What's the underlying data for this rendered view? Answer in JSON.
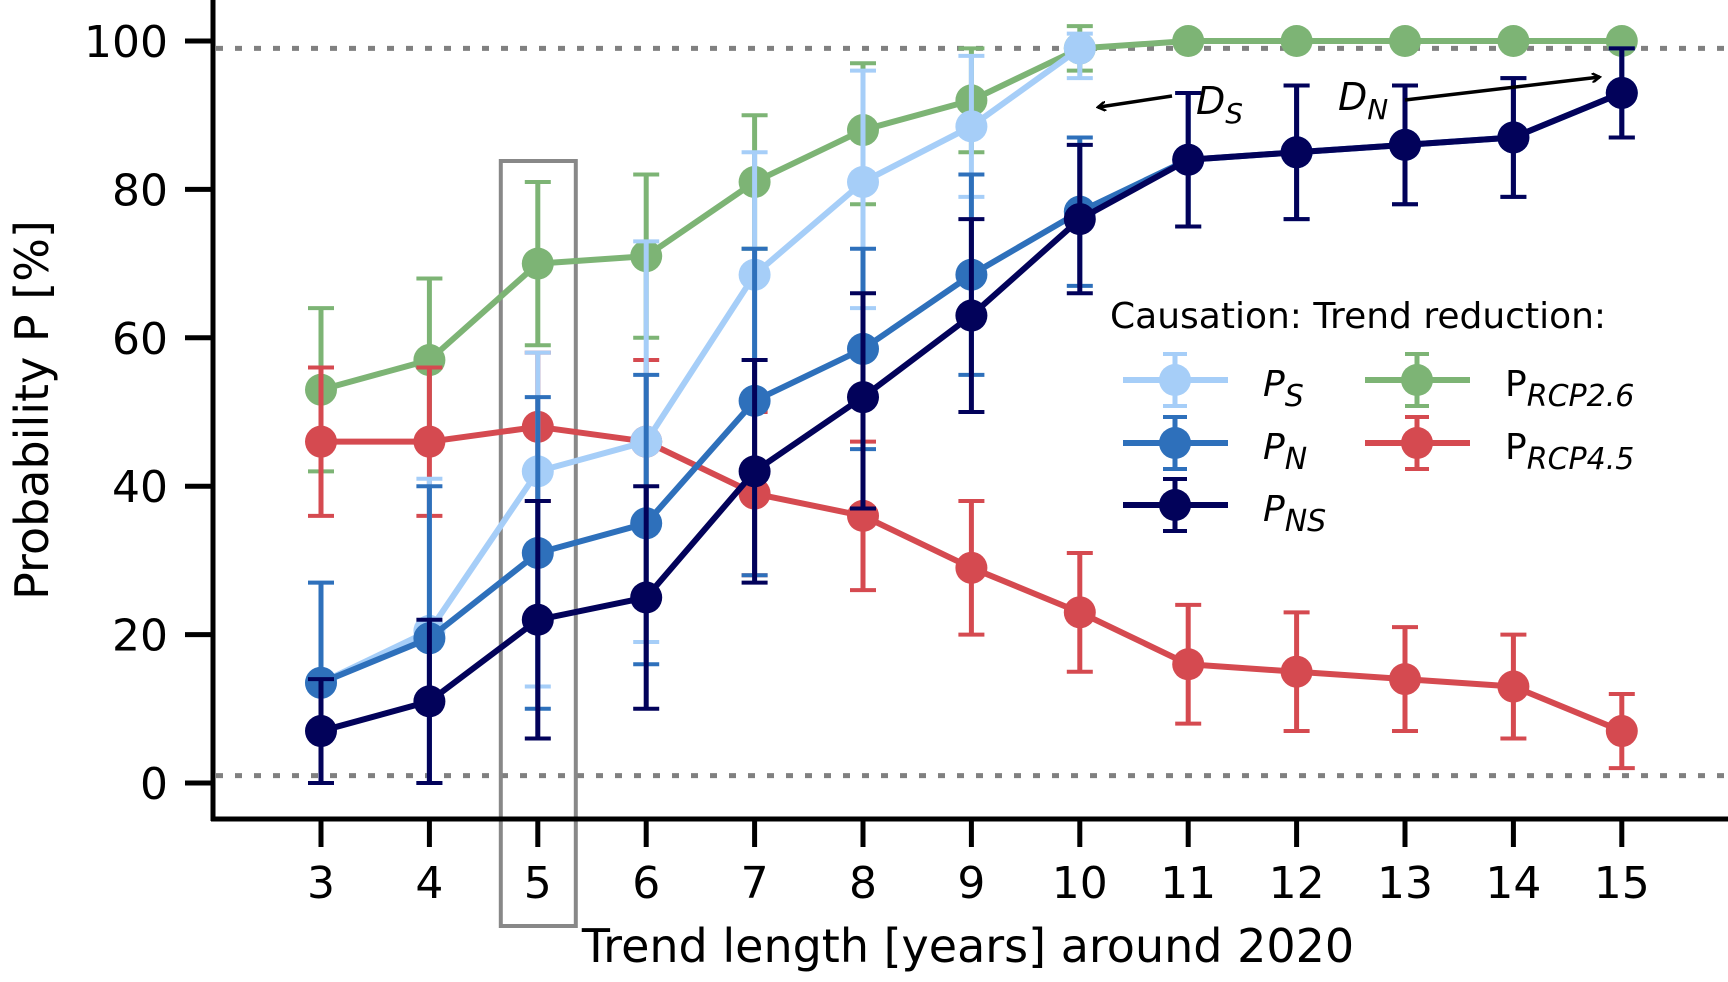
{
  "chart_data": {
    "type": "line",
    "title": "",
    "xlabel": "Trend length [years] around 2020",
    "ylabel": "Probability P [%]",
    "x": [
      3,
      4,
      5,
      6,
      7,
      8,
      9,
      10,
      11,
      12,
      13,
      14,
      15
    ],
    "xlim": [
      2,
      15.95
    ],
    "ylim": [
      -5,
      105
    ],
    "yticks": [
      0,
      20,
      40,
      60,
      80,
      100
    ],
    "xticks": [
      3,
      4,
      5,
      6,
      7,
      8,
      9,
      10,
      11,
      12,
      13,
      14,
      15
    ],
    "grid": false,
    "reference_lines": [
      99,
      1
    ],
    "highlight_x": 5,
    "series": [
      {
        "name": "P_S",
        "label_main": "P",
        "label_sub": "S",
        "group": "Causation",
        "color": "#a6cef8",
        "values": [
          13.5,
          20.5,
          42,
          46,
          68.5,
          81,
          88.5,
          99,
          null,
          null,
          null,
          null,
          null
        ],
        "err_low": [
          0,
          0,
          13,
          19,
          52,
          64,
          79,
          95,
          null,
          null,
          null,
          null,
          null
        ],
        "err_high": [
          27,
          41,
          58,
          73,
          85,
          96,
          98,
          101,
          null,
          null,
          null,
          null,
          null
        ]
      },
      {
        "name": "P_N",
        "label_main": "P",
        "label_sub": "N",
        "group": "Causation",
        "color": "#2e70bb",
        "values": [
          13.5,
          19.5,
          31,
          35,
          51.5,
          58.5,
          68.5,
          77,
          84,
          85,
          86,
          87,
          93
        ],
        "err_low": [
          0,
          0,
          10,
          16,
          28,
          45,
          55,
          67,
          75,
          76,
          78,
          79,
          87
        ],
        "err_high": [
          27,
          40,
          52,
          55,
          72,
          72,
          82,
          87,
          93,
          94,
          94,
          95,
          99
        ]
      },
      {
        "name": "P_NS",
        "label_main": "P",
        "label_sub": "NS",
        "group": "Causation",
        "color": "#02025a",
        "values": [
          7,
          11,
          22,
          25,
          42,
          52,
          63,
          76,
          84,
          85,
          86,
          87,
          93
        ],
        "err_low": [
          0,
          0,
          6,
          10,
          27,
          37,
          50,
          66,
          75,
          76,
          78,
          79,
          87
        ],
        "err_high": [
          14,
          22,
          38,
          40,
          57,
          66,
          76,
          86,
          93,
          94,
          94,
          95,
          99
        ]
      },
      {
        "name": "P_RCP2.6",
        "label_main": "P",
        "label_sub": "RCP2.6",
        "group": "Trend reduction",
        "color": "#7db475",
        "values": [
          53,
          57,
          70,
          71,
          81,
          88,
          92,
          99,
          100,
          100,
          100,
          100,
          100
        ],
        "err_low": [
          42,
          46,
          59,
          60,
          72,
          78,
          85,
          96,
          100,
          100,
          100,
          100,
          100
        ],
        "err_high": [
          64,
          68,
          81,
          82,
          90,
          97,
          99,
          102,
          100,
          100,
          100,
          100,
          100
        ]
      },
      {
        "name": "P_RCP4.5",
        "label_main": "P",
        "label_sub": "RCP4.5",
        "group": "Trend reduction",
        "color": "#d54a50",
        "values": [
          46,
          46,
          48,
          46,
          39,
          36,
          29,
          23,
          16,
          15,
          14,
          13,
          7
        ],
        "err_low": [
          36,
          36,
          38,
          35,
          28,
          26,
          20,
          15,
          8,
          7,
          7,
          6,
          2
        ],
        "err_high": [
          56,
          56,
          58,
          57,
          50,
          46,
          38,
          31,
          24,
          23,
          21,
          20,
          12
        ]
      }
    ],
    "legend": {
      "title": "Causation: Trend reduction:",
      "placement": "center-right"
    },
    "annotations": [
      {
        "main": "D",
        "sub": "S",
        "points_to_x": 10,
        "points_to_y": 97
      },
      {
        "main": "D",
        "sub": "N",
        "points_to_x": 15,
        "points_to_y": 95
      }
    ]
  }
}
